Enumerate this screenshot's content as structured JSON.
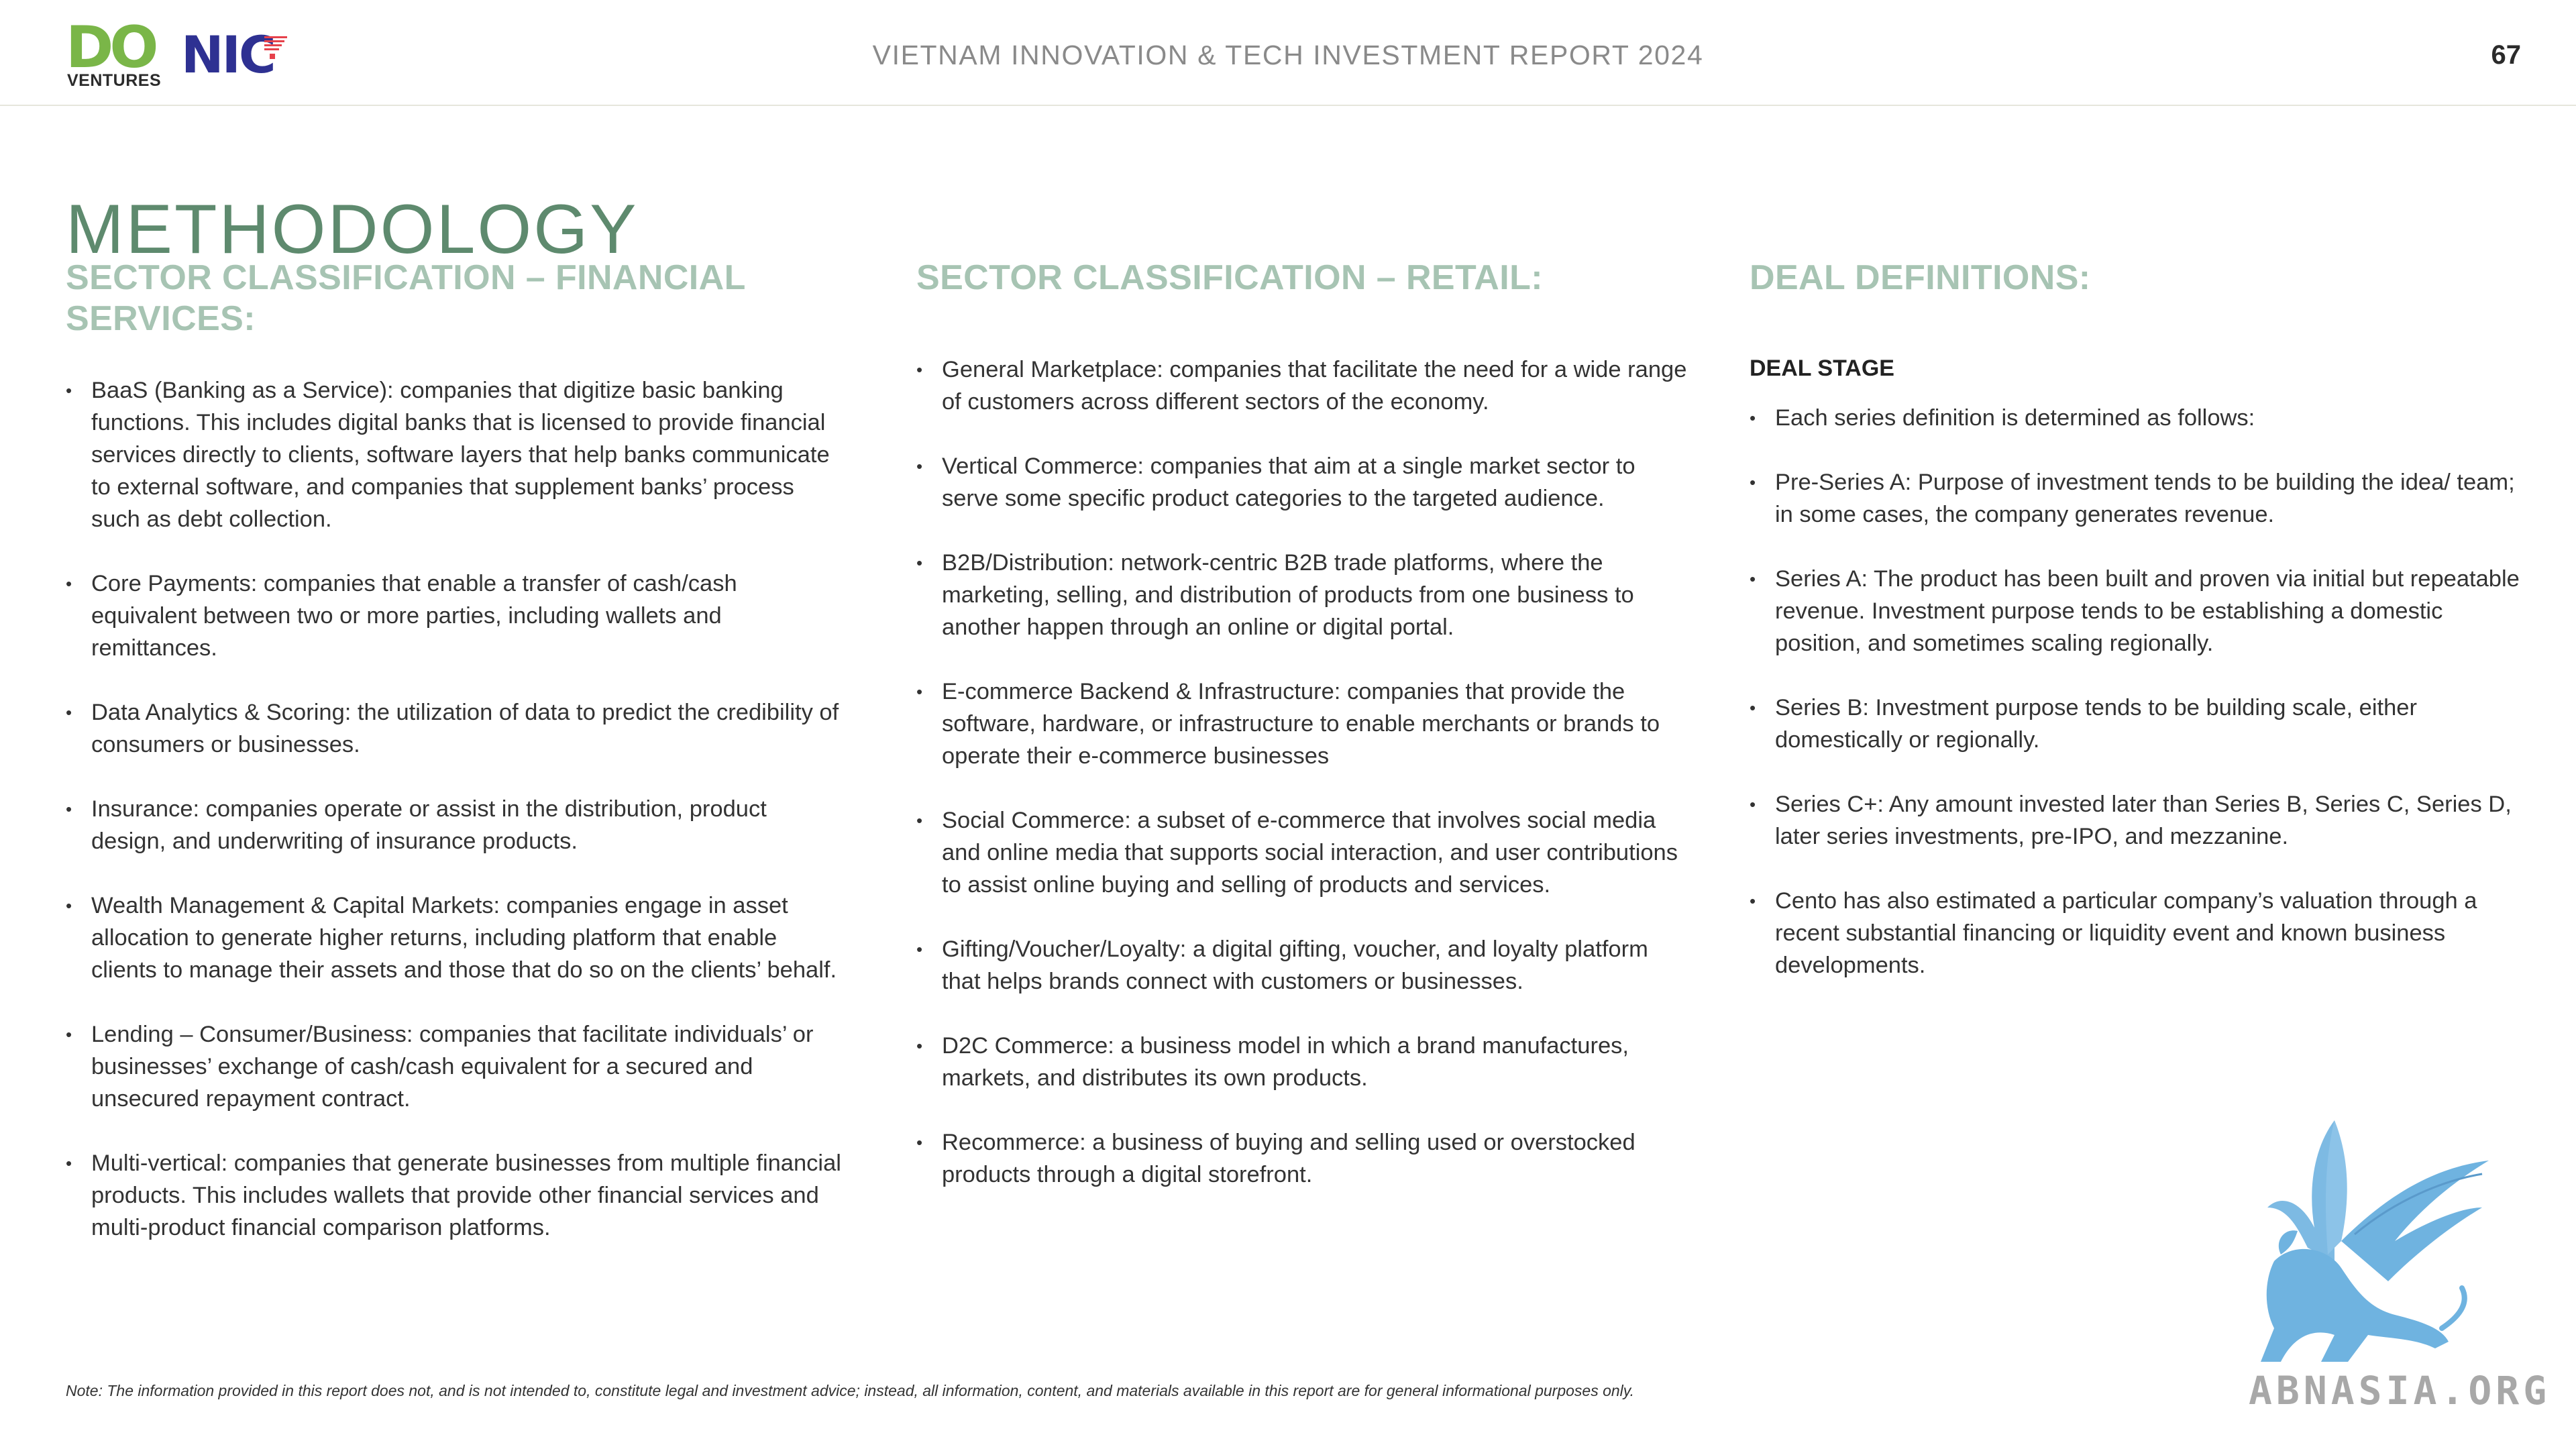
{
  "header": {
    "logo_do": "DO",
    "logo_ventures": "VENTURES",
    "logo_nic": "NIC",
    "report_title": "VIETNAM INNOVATION & TECH INVESTMENT REPORT 2024",
    "page_number": "67"
  },
  "page_title": "METHODOLOGY",
  "financial": {
    "heading": "SECTOR CLASSIFICATION – FINANCIAL SERVICES:",
    "items": [
      "BaaS (Banking as a Service): companies that digitize basic banking functions. This includes digital banks that is licensed to provide financial services directly to clients, software layers that help banks communicate to external software, and companies that supplement banks’ process such as debt collection.",
      "Core Payments: companies that enable a transfer of cash/cash equivalent between two or more parties, including wallets and remittances.",
      "Data Analytics & Scoring: the utilization of data to predict the credibility of consumers or businesses.",
      "Insurance: companies operate or assist in the distribution, product design, and underwriting of insurance products.",
      "Wealth Management & Capital Markets: companies engage in asset allocation to generate higher returns, including platform that enable clients to manage their assets and those that do so on the clients’ behalf.",
      "Lending – Consumer/Business: companies that facilitate individuals’ or businesses’ exchange of cash/cash equivalent for a secured and unsecured repayment contract.",
      "Multi-vertical: companies that generate businesses from multiple financial products. This includes wallets that provide other financial services and multi-product financial comparison platforms."
    ]
  },
  "retail": {
    "heading": "SECTOR CLASSIFICATION – RETAIL:",
    "items": [
      "General Marketplace: companies that facilitate the need for a wide range of customers across different sectors of the economy.",
      "Vertical Commerce: companies that aim at a single market sector to serve some specific product categories to the targeted audience.",
      "B2B/Distribution: network-centric B2B trade platforms, where the marketing, selling, and distribution of products from one business to another happen through an online or digital portal.",
      "E-commerce Backend & Infrastructure: companies that provide the software, hardware, or infrastructure to enable merchants or brands to operate their e-commerce businesses",
      "Social Commerce: a subset of e-commerce that involves social media and online media that supports social interaction, and user contributions to assist online buying and selling of products and services.",
      "Gifting/Voucher/Loyalty: a digital gifting, voucher, and loyalty platform that helps brands connect with customers or businesses.",
      "D2C Commerce: a business model in which a brand manufactures, markets, and distributes its own products.",
      "Recommerce: a business of buying and selling used or overstocked products through a digital storefront."
    ]
  },
  "deals": {
    "heading": "DEAL DEFINITIONS:",
    "subheading": "DEAL STAGE",
    "items": [
      "Each series definition is determined as follows:",
      "Pre-Series A: Purpose of investment tends to be building the idea/ team; in some cases, the company generates revenue.",
      "Series A: The product has been built and proven via initial but repeatable revenue. Investment purpose tends to be establishing a domestic position, and sometimes scaling regionally.",
      "Series B:  Investment purpose tends to be building scale, either domestically or regionally.",
      "Series C+: Any amount invested later than Series B, Series C, Series D, later series investments, pre-IPO, and mezzanine.",
      "Cento has also estimated a particular company’s valuation through a recent substantial financing or liquidity event and known business developments."
    ]
  },
  "footer": {
    "note": "Note: The information provided in this report does not, and is not intended to, constitute legal and investment advice; instead, all information, content, and materials available in this report are for general informational purposes only.",
    "watermark_text": "ABNASIA.ORG"
  },
  "colors": {
    "title_green": "#5e8a6e",
    "heading_green": "#a7c4b3",
    "do_green": "#7ab648",
    "nic_blue": "#2e3192",
    "watermark_blue": "#6fb3e0"
  }
}
